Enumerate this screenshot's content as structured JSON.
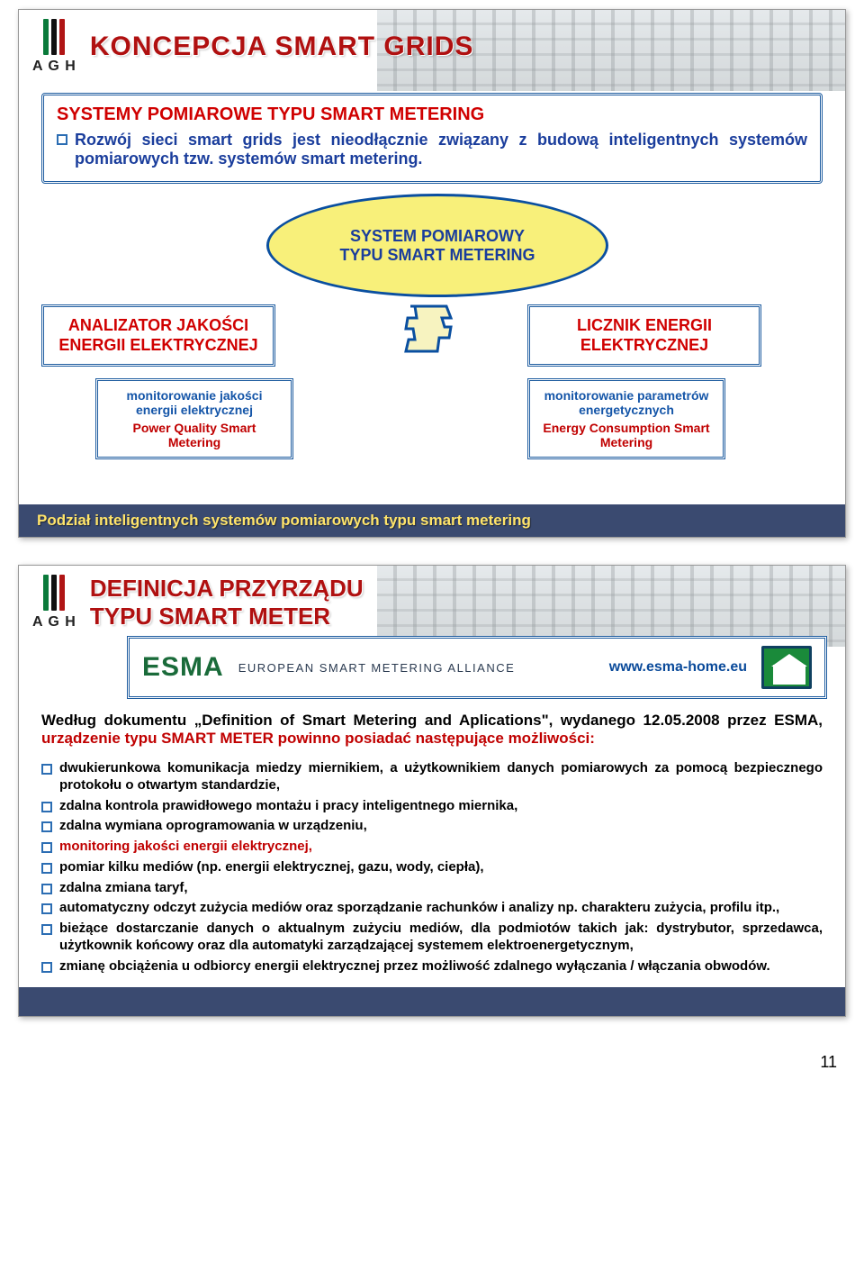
{
  "slide1": {
    "agh_label": "A G H",
    "header_title": "KONCEPCJA SMART GRIDS",
    "section_title": "SYSTEMY POMIAROWE TYPU SMART METERING",
    "intro": "Rozwój sieci smart grids jest nieodłącznie związany z budową inteligentnych systemów pomiarowych tzw. systemów smart metering.",
    "ellipse_line1": "SYSTEM POMIAROWY",
    "ellipse_line2": "TYPU SMART METERING",
    "left_node": "ANALIZATOR JAKOŚCI ENERGII ELEKTRYCZNEJ",
    "right_node": "LICZNIK ENERGII ELEKTRYCZNEJ",
    "left_sub1": "monitorowanie jakości energii elektrycznej",
    "left_sub2": "Power Quality Smart Metering",
    "right_sub1": "monitorowanie parametrów energetycznych",
    "right_sub2": "Energy Consumption Smart Metering",
    "footer": "Podział inteligentnych systemów pomiarowych typu smart metering",
    "colors": {
      "title_red": "#b01010",
      "blue": "#1a3d9c",
      "ellipse_fill": "#f8f07a",
      "ellipse_border": "#0a4fa0",
      "footer_bg": "#3a4a70",
      "footer_text": "#ffe46a"
    }
  },
  "slide2": {
    "agh_label": "A G H",
    "header_title1": "DEFINICJA PRZYRZĄDU",
    "header_title2": "TYPU SMART METER",
    "esma_logo": "ESMA",
    "esma_sub": "EUROPEAN SMART METERING ALLIANCE",
    "esma_url": "www.esma-home.eu",
    "doc_intro_pre": "Według dokumentu „Definition of Smart Metering and Aplications\", wydanego 12.05.2008 przez ESMA, ",
    "doc_intro_hl": "urządzenie typu SMART METER powinno posiadać następujące możliwości:",
    "bullets": [
      {
        "text": "dwukierunkowa komunikacja miedzy miernikiem, a użytkownikiem danych pomiarowych za pomocą bezpiecznego protokołu o otwartym standardzie,",
        "red": false
      },
      {
        "text": "zdalna kontrola prawidłowego montażu i pracy inteligentnego miernika,",
        "red": false
      },
      {
        "text": "zdalna wymiana oprogramowania w urządzeniu,",
        "red": false
      },
      {
        "text": "monitoring jakości energii elektrycznej,",
        "red": true
      },
      {
        "text": "pomiar kilku mediów (np. energii elektrycznej, gazu, wody, ciepła),",
        "red": false
      },
      {
        "text": "zdalna zmiana taryf,",
        "red": false
      },
      {
        "text": "automatyczny odczyt zużycia mediów oraz sporządzanie rachunków i analizy np. charakteru zużycia, profilu itp.,",
        "red": false
      },
      {
        "text": "bieżące dostarczanie danych o aktualnym zużyciu mediów, dla podmiotów takich jak: dystrybutor, sprzedawca, użytkownik końcowy oraz dla automatyki zarządzającej systemem elektroenergetycznym,",
        "red": false
      },
      {
        "text": "zmianę obciążenia u odbiorcy energii elektrycznej przez możliwość zdalnego wyłączania / włączania obwodów.",
        "red": false
      }
    ],
    "colors": {
      "esma_green": "#1a6b3a",
      "url_blue": "#0a4a9a",
      "highlight_red": "#c00000"
    }
  },
  "page_number": "11"
}
